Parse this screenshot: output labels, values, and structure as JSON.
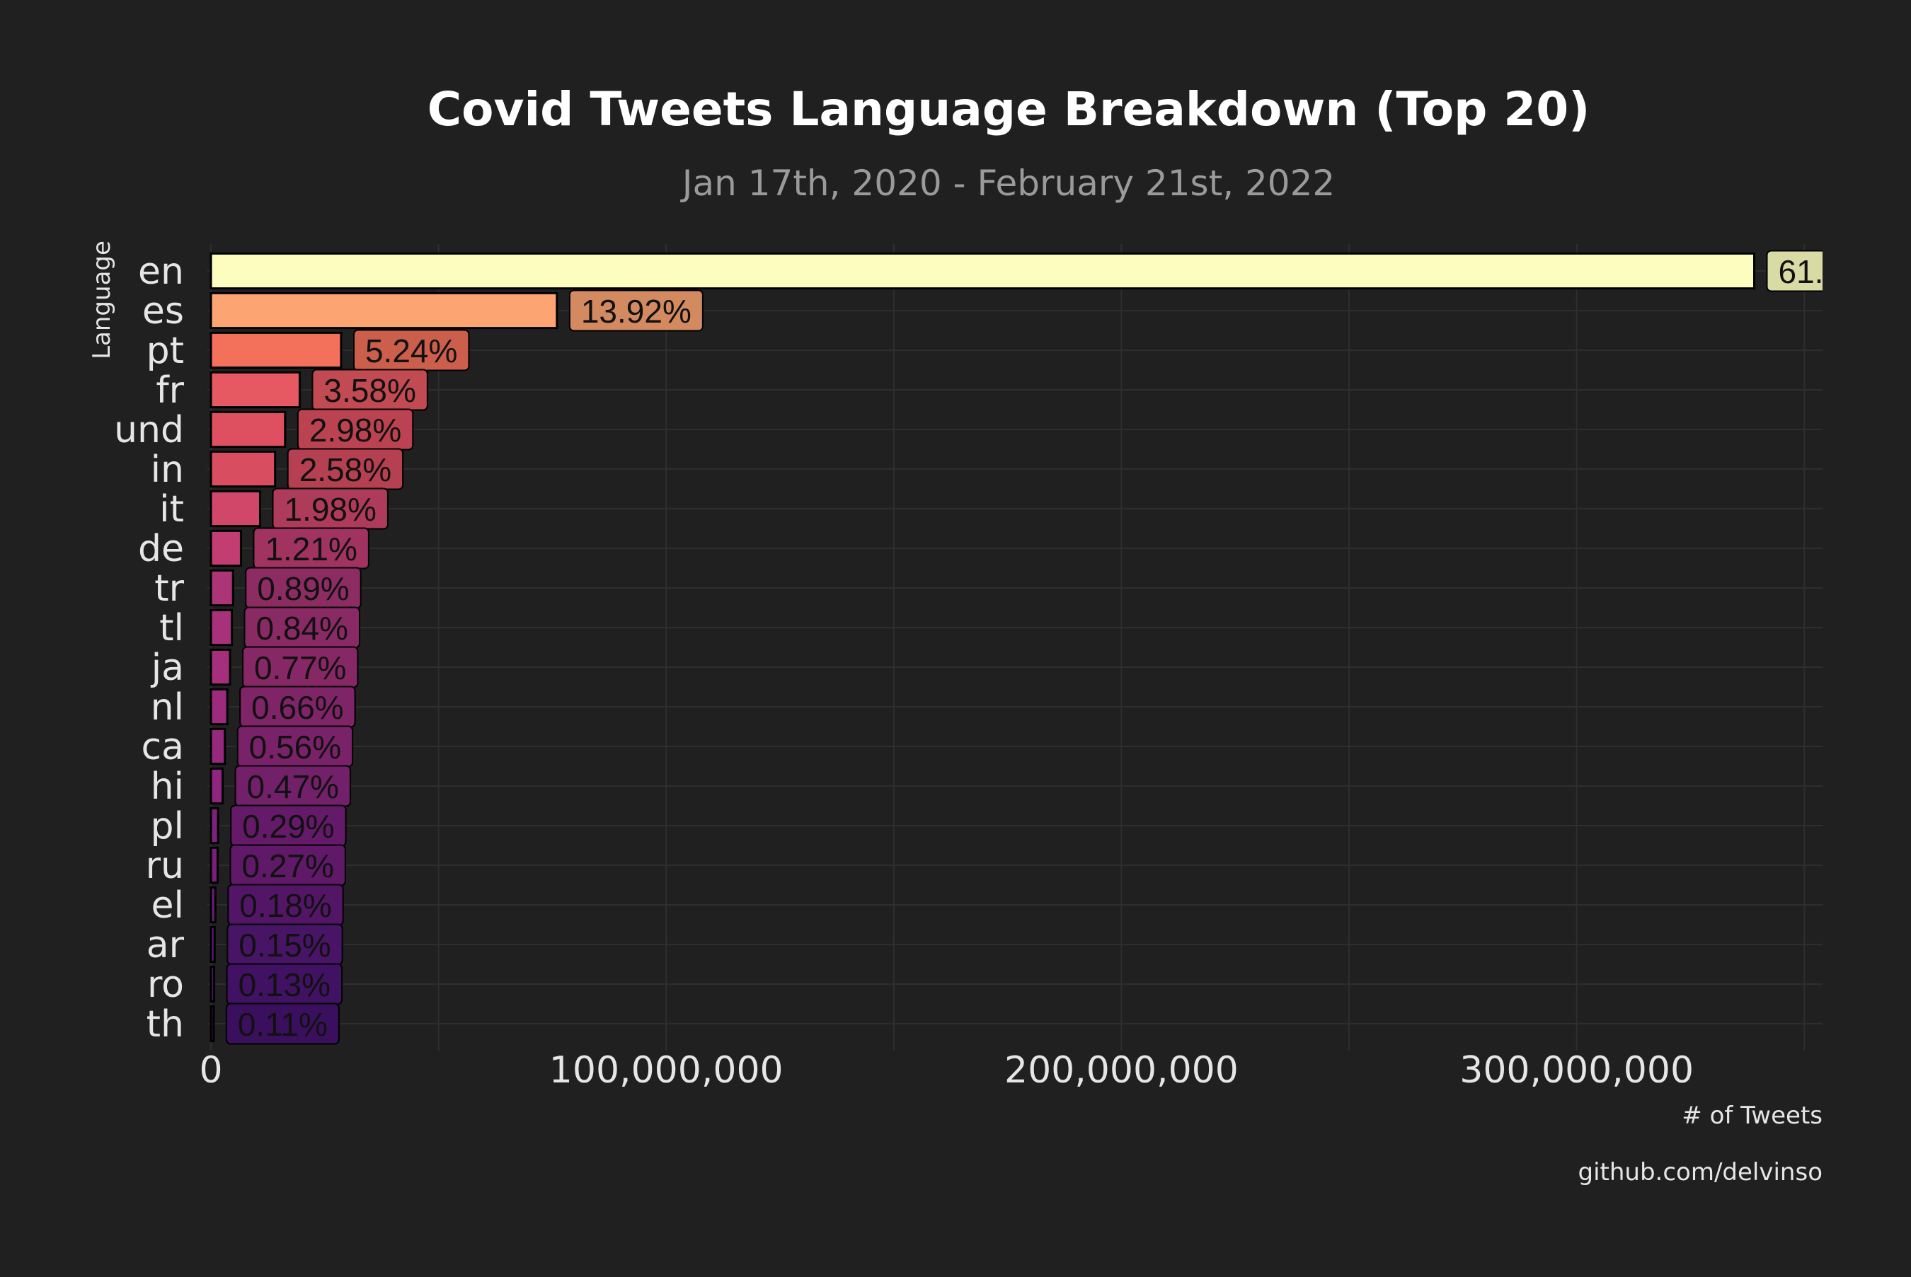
{
  "colors": {
    "background": "#202020",
    "grid": "#2e2e2e",
    "bar_outline": "#000000"
  },
  "chart_data": {
    "type": "bar",
    "orientation": "horizontal",
    "title": "Covid Tweets Language Breakdown (Top 20)",
    "subtitle": "Jan 17th, 2020 - February 21st, 2022",
    "xlabel": "# of Tweets",
    "ylabel": "Language",
    "caption": "github.com/delvinso",
    "xlim": [
      0,
      354000000
    ],
    "x_ticks": [
      0,
      100000000,
      200000000,
      300000000
    ],
    "x_tick_labels": [
      "0",
      "100,000,000",
      "200,000,000",
      "300,000,000"
    ],
    "grid": true,
    "categories": [
      "en",
      "es",
      "pt",
      "fr",
      "und",
      "in",
      "it",
      "de",
      "tr",
      "tl",
      "ja",
      "nl",
      "ca",
      "hi",
      "pl",
      "ru",
      "el",
      "ar",
      "ro",
      "th"
    ],
    "values": [
      339000000,
      76000000,
      28600000,
      19500000,
      16300000,
      14100000,
      10800000,
      6600000,
      4860000,
      4590000,
      4200000,
      3600000,
      3060000,
      2570000,
      1580000,
      1470000,
      980000,
      820000,
      710000,
      600000
    ],
    "labels": [
      "61.",
      "13.92%",
      "5.24%",
      "3.58%",
      "2.98%",
      "2.58%",
      "1.98%",
      "1.21%",
      "0.89%",
      "0.84%",
      "0.77%",
      "0.66%",
      "0.56%",
      "0.47%",
      "0.29%",
      "0.27%",
      "0.18%",
      "0.15%",
      "0.13%",
      "0.11%"
    ],
    "bar_colors": [
      "#FCFDBF",
      "#FDA572",
      "#F3705A",
      "#E65862",
      "#DE5060",
      "#D84D60",
      "#D0476A",
      "#C13D72",
      "#AC3578",
      "#A8327A",
      "#A52F7B",
      "#9D2B7D",
      "#96287E",
      "#8F257F",
      "#7F1F7E",
      "#7A1D7D",
      "#6A1A7C",
      "#5E177A",
      "#551577",
      "#4D1372"
    ],
    "label_fills": [
      "#D9DBA5",
      "#D48A60",
      "#CC5E4C",
      "#C24A53",
      "#BB4351",
      "#B54051",
      "#AD3B59",
      "#A03360",
      "#8D2C63",
      "#8A2A65",
      "#872866",
      "#802468",
      "#7A2269",
      "#73206A",
      "#641A68",
      "#601968",
      "#531667",
      "#481465",
      "#411263",
      "#3A105E"
    ]
  }
}
